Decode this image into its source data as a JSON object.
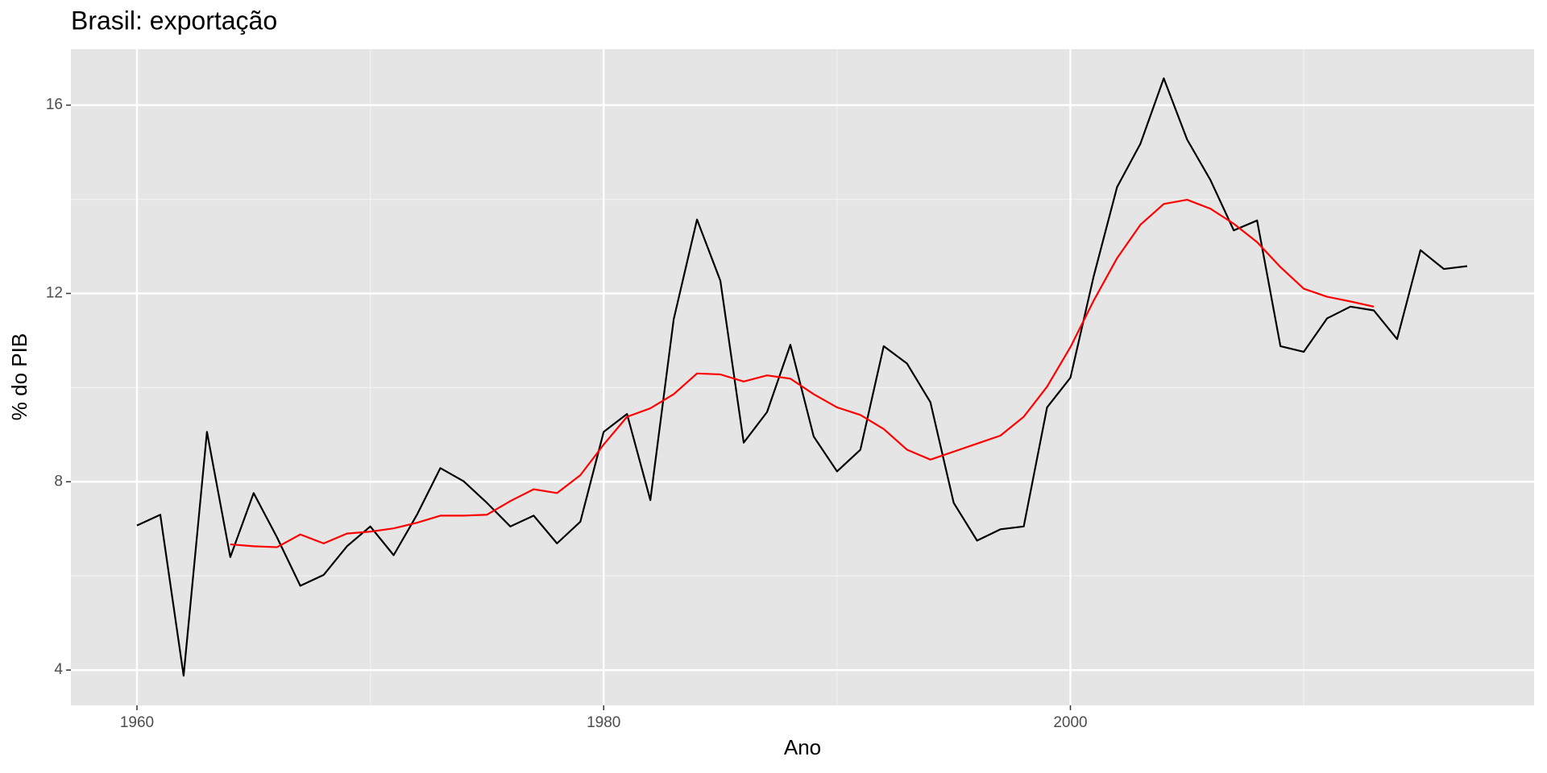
{
  "chart_data": {
    "type": "line",
    "title": "Brasil: exportação",
    "x_label": "Ano",
    "y_label": "% do PIB",
    "x": [
      1960,
      1961,
      1962,
      1963,
      1964,
      1965,
      1966,
      1967,
      1968,
      1969,
      1970,
      1971,
      1972,
      1973,
      1974,
      1975,
      1976,
      1977,
      1978,
      1979,
      1980,
      1981,
      1982,
      1983,
      1984,
      1985,
      1986,
      1987,
      1988,
      1989,
      1990,
      1991,
      1992,
      1993,
      1994,
      1995,
      1996,
      1997,
      1998,
      1999,
      2000,
      2001,
      2002,
      2003,
      2004,
      2005,
      2006,
      2007,
      2008,
      2009,
      2010,
      2011,
      2012,
      2013,
      2014,
      2015,
      2016,
      2017
    ],
    "series": [
      {
        "color": "#000000",
        "values": [
          7.07,
          7.3,
          3.88,
          9.06,
          6.4,
          7.76,
          6.82,
          5.79,
          6.02,
          6.63,
          7.05,
          6.44,
          7.3,
          8.29,
          8.01,
          7.55,
          7.05,
          7.28,
          6.69,
          7.15,
          9.06,
          9.44,
          7.61,
          11.45,
          13.57,
          12.27,
          8.83,
          9.48,
          10.91,
          8.96,
          8.22,
          8.68,
          10.88,
          10.51,
          9.69,
          7.55,
          6.75,
          6.99,
          7.05,
          9.58,
          10.21,
          12.37,
          14.26,
          15.18,
          16.57,
          15.27,
          14.41,
          13.34,
          13.55,
          10.88,
          10.76,
          11.47,
          11.72,
          11.64,
          11.03,
          12.92,
          12.52,
          12.58
        ]
      },
      {
        "color": "#ff0000",
        "values": [
          null,
          null,
          null,
          null,
          6.67,
          6.63,
          6.61,
          6.88,
          6.69,
          6.9,
          6.94,
          7.01,
          7.13,
          7.28,
          7.28,
          7.3,
          7.59,
          7.84,
          7.76,
          8.14,
          8.79,
          9.38,
          9.56,
          9.86,
          10.3,
          10.28,
          10.13,
          10.26,
          10.19,
          9.86,
          9.58,
          9.42,
          9.12,
          8.68,
          8.47,
          8.64,
          8.81,
          8.98,
          9.38,
          10.02,
          10.86,
          11.85,
          12.75,
          13.46,
          13.9,
          13.99,
          13.8,
          13.48,
          13.09,
          12.56,
          12.1,
          11.93,
          11.83,
          11.72,
          null,
          null,
          null,
          null
        ]
      }
    ],
    "xlim": [
      1957.17,
      2019.87
    ],
    "ylim": [
      3.25,
      17.19
    ],
    "xticks": [
      1960,
      1980,
      2000
    ],
    "yticks": [
      4,
      8,
      12,
      16
    ],
    "xminor": [
      1970,
      1990,
      2010
    ],
    "yminor": [
      6,
      10,
      14
    ],
    "grid": true,
    "background": "#e5e5e5"
  }
}
